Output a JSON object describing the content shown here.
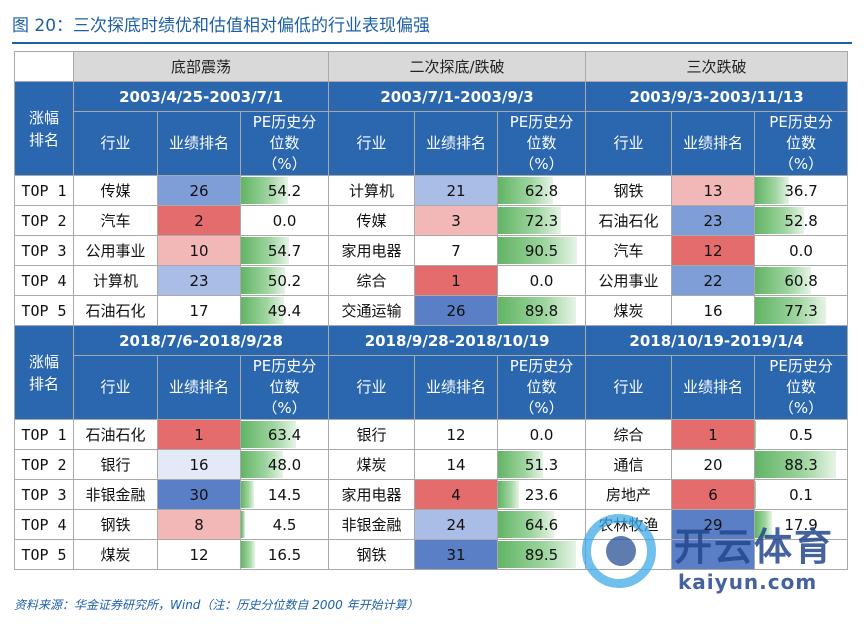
{
  "title": "图 20：三次探底时绩优和估值相对偏低的行业表现偏强",
  "phases": [
    "底部震荡",
    "二次探底/跌破",
    "三次跌破"
  ],
  "side_header": "涨幅\n排名",
  "col_headers": [
    "行业",
    "业绩排名",
    "PE历史分\n位数\n（%）"
  ],
  "pe_scale_max": 100,
  "rank_colors": {
    "dark_red": "#e46c6c",
    "light_red": "#f2b8b8",
    "pale_red": "#fbe3e3",
    "pale_blue": "#e3e9f6",
    "light_blue": "#a9bde6",
    "mid_blue": "#7f9dd6",
    "dark_blue": "#5a7fc6",
    "white": "#ffffff"
  },
  "blocks": [
    {
      "periods": [
        "2003/4/25-2003/7/1",
        "2003/7/1-2003/9/3",
        "2003/9/3-2003/11/13"
      ],
      "rows": [
        {
          "rank": "TOP 1",
          "cells": [
            {
              "industry": "传媒",
              "perf": "26",
              "perf_color": "#7f9dd6",
              "pe": 54.2,
              "pe_text": "54.2"
            },
            {
              "industry": "计算机",
              "perf": "21",
              "perf_color": "#a9bde6",
              "pe": 62.8,
              "pe_text": "62.8"
            },
            {
              "industry": "钢铁",
              "perf": "13",
              "perf_color": "#f2b8b8",
              "pe": 36.7,
              "pe_text": "36.7"
            }
          ]
        },
        {
          "rank": "TOP 2",
          "cells": [
            {
              "industry": "汽车",
              "perf": "2",
              "perf_color": "#e46c6c",
              "pe": 0.0,
              "pe_text": "0.0"
            },
            {
              "industry": "传媒",
              "perf": "3",
              "perf_color": "#f2b8b8",
              "pe": 72.3,
              "pe_text": "72.3"
            },
            {
              "industry": "石油石化",
              "perf": "23",
              "perf_color": "#7f9dd6",
              "pe": 52.8,
              "pe_text": "52.8"
            }
          ]
        },
        {
          "rank": "TOP 3",
          "cells": [
            {
              "industry": "公用事业",
              "perf": "10",
              "perf_color": "#f2b8b8",
              "pe": 54.7,
              "pe_text": "54.7"
            },
            {
              "industry": "家用电器",
              "perf": "7",
              "perf_color": "#ffffff",
              "pe": 90.5,
              "pe_text": "90.5"
            },
            {
              "industry": "汽车",
              "perf": "12",
              "perf_color": "#e46c6c",
              "pe": 0.0,
              "pe_text": "0.0"
            }
          ]
        },
        {
          "rank": "TOP 4",
          "cells": [
            {
              "industry": "计算机",
              "perf": "23",
              "perf_color": "#a9bde6",
              "pe": 50.2,
              "pe_text": "50.2"
            },
            {
              "industry": "综合",
              "perf": "1",
              "perf_color": "#e46c6c",
              "pe": 0.0,
              "pe_text": "0.0"
            },
            {
              "industry": "公用事业",
              "perf": "22",
              "perf_color": "#7f9dd6",
              "pe": 60.8,
              "pe_text": "60.8"
            }
          ]
        },
        {
          "rank": "TOP 5",
          "cells": [
            {
              "industry": "石油石化",
              "perf": "17",
              "perf_color": "#ffffff",
              "pe": 49.4,
              "pe_text": "49.4"
            },
            {
              "industry": "交通运输",
              "perf": "26",
              "perf_color": "#5a7fc6",
              "pe": 89.8,
              "pe_text": "89.8"
            },
            {
              "industry": "煤炭",
              "perf": "16",
              "perf_color": "#ffffff",
              "pe": 77.3,
              "pe_text": "77.3"
            }
          ]
        }
      ]
    },
    {
      "periods": [
        "2018/7/6-2018/9/28",
        "2018/9/28-2018/10/19",
        "2018/10/19-2019/1/4"
      ],
      "rows": [
        {
          "rank": "TOP 1",
          "cells": [
            {
              "industry": "石油石化",
              "perf": "1",
              "perf_color": "#e46c6c",
              "pe": 63.4,
              "pe_text": "63.4"
            },
            {
              "industry": "银行",
              "perf": "12",
              "perf_color": "#ffffff",
              "pe": 0.0,
              "pe_text": "0.0"
            },
            {
              "industry": "综合",
              "perf": "1",
              "perf_color": "#e46c6c",
              "pe": 0.5,
              "pe_text": "0.5"
            }
          ]
        },
        {
          "rank": "TOP 2",
          "cells": [
            {
              "industry": "银行",
              "perf": "16",
              "perf_color": "#e3e9f6",
              "pe": 48.0,
              "pe_text": "48.0"
            },
            {
              "industry": "煤炭",
              "perf": "14",
              "perf_color": "#ffffff",
              "pe": 51.3,
              "pe_text": "51.3"
            },
            {
              "industry": "通信",
              "perf": "20",
              "perf_color": "#ffffff",
              "pe": 88.3,
              "pe_text": "88.3"
            }
          ]
        },
        {
          "rank": "TOP 3",
          "cells": [
            {
              "industry": "非银金融",
              "perf": "30",
              "perf_color": "#5a7fc6",
              "pe": 14.5,
              "pe_text": "14.5"
            },
            {
              "industry": "家用电器",
              "perf": "4",
              "perf_color": "#e46c6c",
              "pe": 23.6,
              "pe_text": "23.6"
            },
            {
              "industry": "房地产",
              "perf": "6",
              "perf_color": "#e46c6c",
              "pe": 0.1,
              "pe_text": "0.1"
            }
          ]
        },
        {
          "rank": "TOP 4",
          "cells": [
            {
              "industry": "钢铁",
              "perf": "8",
              "perf_color": "#f2b8b8",
              "pe": 4.5,
              "pe_text": "4.5"
            },
            {
              "industry": "非银金融",
              "perf": "24",
              "perf_color": "#a9bde6",
              "pe": 64.6,
              "pe_text": "64.6"
            },
            {
              "industry": "农林牧渔",
              "perf": "29",
              "perf_color": "#5a7fc6",
              "pe": 17.9,
              "pe_text": "17.9"
            }
          ]
        },
        {
          "rank": "TOP 5",
          "cells": [
            {
              "industry": "煤炭",
              "perf": "12",
              "perf_color": "#ffffff",
              "pe": 16.5,
              "pe_text": "16.5"
            },
            {
              "industry": "钢铁",
              "perf": "31",
              "perf_color": "#5a7fc6",
              "pe": 89.5,
              "pe_text": "89.5"
            },
            {
              "industry": "",
              "perf": "",
              "perf_color": "#5a7fc6",
              "pe": 0,
              "pe_text": ""
            }
          ]
        }
      ]
    }
  ],
  "source": "资料来源：华金证券研究所，Wind（注：历史分位数自 2000 年开始计算）",
  "watermark": {
    "brand": "开云体育",
    "url": "kaiyun.com"
  }
}
